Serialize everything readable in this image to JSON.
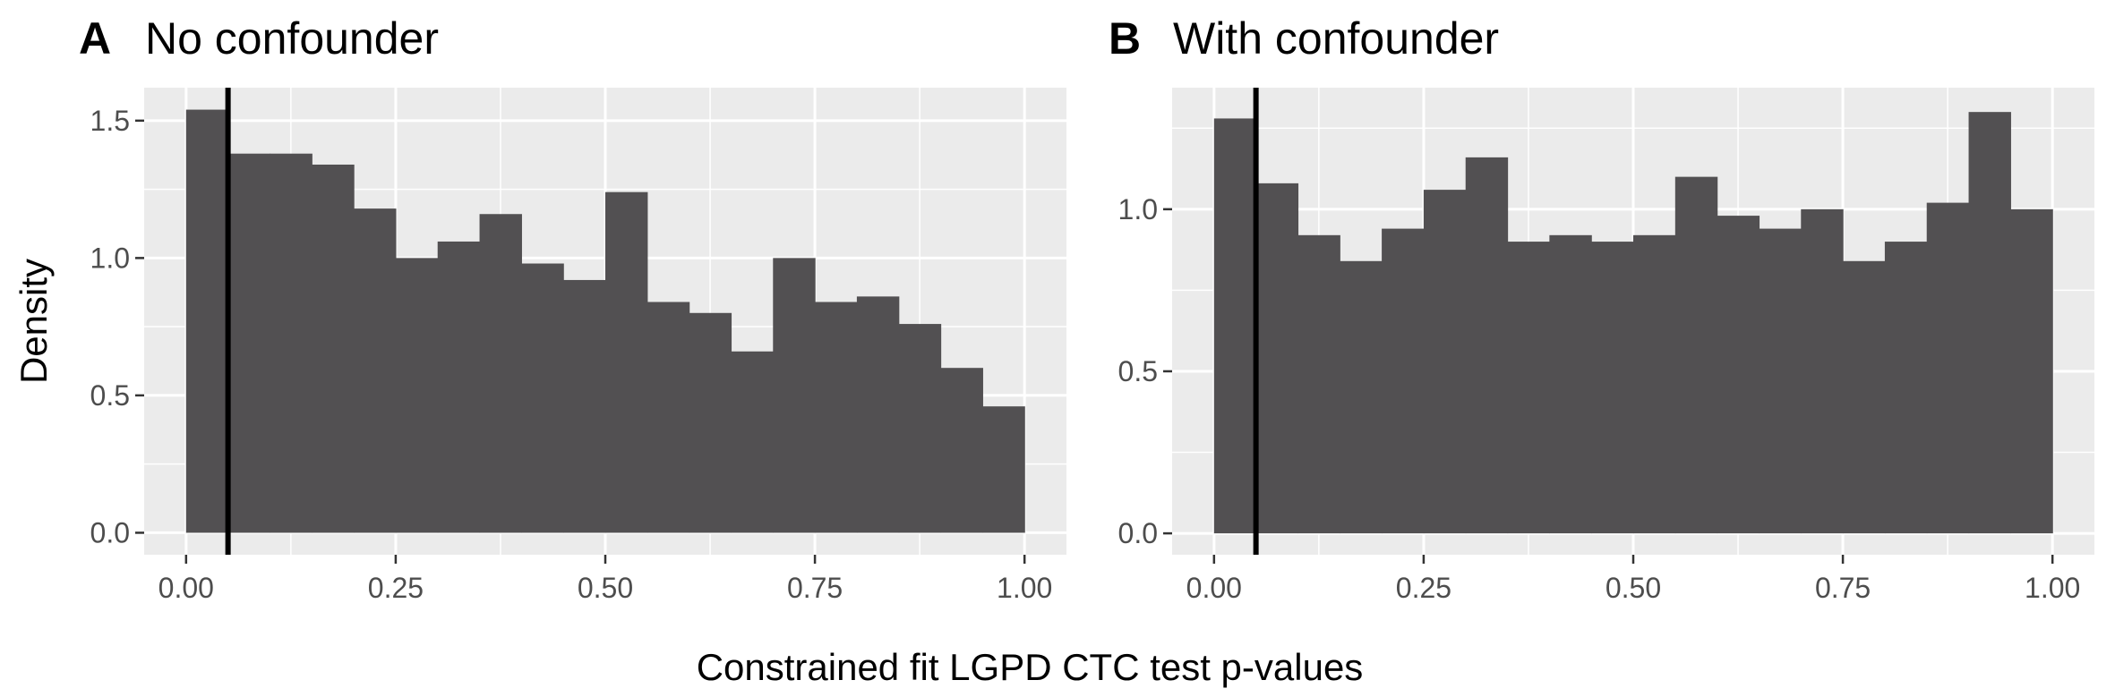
{
  "shared_axes": {
    "xlabel": "Constrained fit LGPD CTC test p-values",
    "ylabel": "Density"
  },
  "chart_data": [
    {
      "type": "bar",
      "panel_label": "A",
      "title": "No confounder",
      "bin_width": 0.05,
      "bin_starts": [
        0.0,
        0.05,
        0.1,
        0.15,
        0.2,
        0.25,
        0.3,
        0.35,
        0.4,
        0.45,
        0.5,
        0.55,
        0.6,
        0.65,
        0.7,
        0.75,
        0.8,
        0.85,
        0.9,
        0.95
      ],
      "values": [
        1.54,
        1.38,
        1.38,
        1.34,
        1.18,
        1.0,
        1.06,
        1.16,
        0.98,
        0.92,
        1.24,
        0.84,
        0.8,
        0.66,
        1.0,
        0.84,
        0.86,
        0.76,
        0.6,
        0.46
      ],
      "xlim": [
        -0.05,
        1.05
      ],
      "ylim": [
        -0.08,
        1.62
      ],
      "xticks": [
        0.0,
        0.25,
        0.5,
        0.75,
        1.0
      ],
      "xtick_labels": [
        "0.00",
        "0.25",
        "0.50",
        "0.75",
        "1.00"
      ],
      "yticks": [
        0.0,
        0.5,
        1.0,
        1.5
      ],
      "ytick_labels": [
        "0.0",
        "0.5",
        "1.0",
        "1.5"
      ],
      "vline_x": 0.05,
      "bar_color": "#525052",
      "vline_color": "#000000",
      "panel_bg": "#ebebeb",
      "grid": true
    },
    {
      "type": "bar",
      "panel_label": "B",
      "title": "With confounder",
      "bin_width": 0.05,
      "bin_starts": [
        0.0,
        0.05,
        0.1,
        0.15,
        0.2,
        0.25,
        0.3,
        0.35,
        0.4,
        0.45,
        0.5,
        0.55,
        0.6,
        0.65,
        0.7,
        0.75,
        0.8,
        0.85,
        0.9,
        0.95
      ],
      "values": [
        1.28,
        1.08,
        0.92,
        0.84,
        0.94,
        1.06,
        1.16,
        0.9,
        0.92,
        0.9,
        0.92,
        1.1,
        0.98,
        0.94,
        1.0,
        0.84,
        0.9,
        1.02,
        1.3,
        1.0
      ],
      "xlim": [
        -0.05,
        1.05
      ],
      "ylim": [
        -0.066,
        1.375
      ],
      "xticks": [
        0.0,
        0.25,
        0.5,
        0.75,
        1.0
      ],
      "xtick_labels": [
        "0.00",
        "0.25",
        "0.50",
        "0.75",
        "1.00"
      ],
      "yticks": [
        0.0,
        0.5,
        1.0
      ],
      "ytick_labels": [
        "0.0",
        "0.5",
        "1.0"
      ],
      "vline_x": 0.05,
      "bar_color": "#525052",
      "vline_color": "#000000",
      "panel_bg": "#ebebeb",
      "grid": true
    }
  ]
}
